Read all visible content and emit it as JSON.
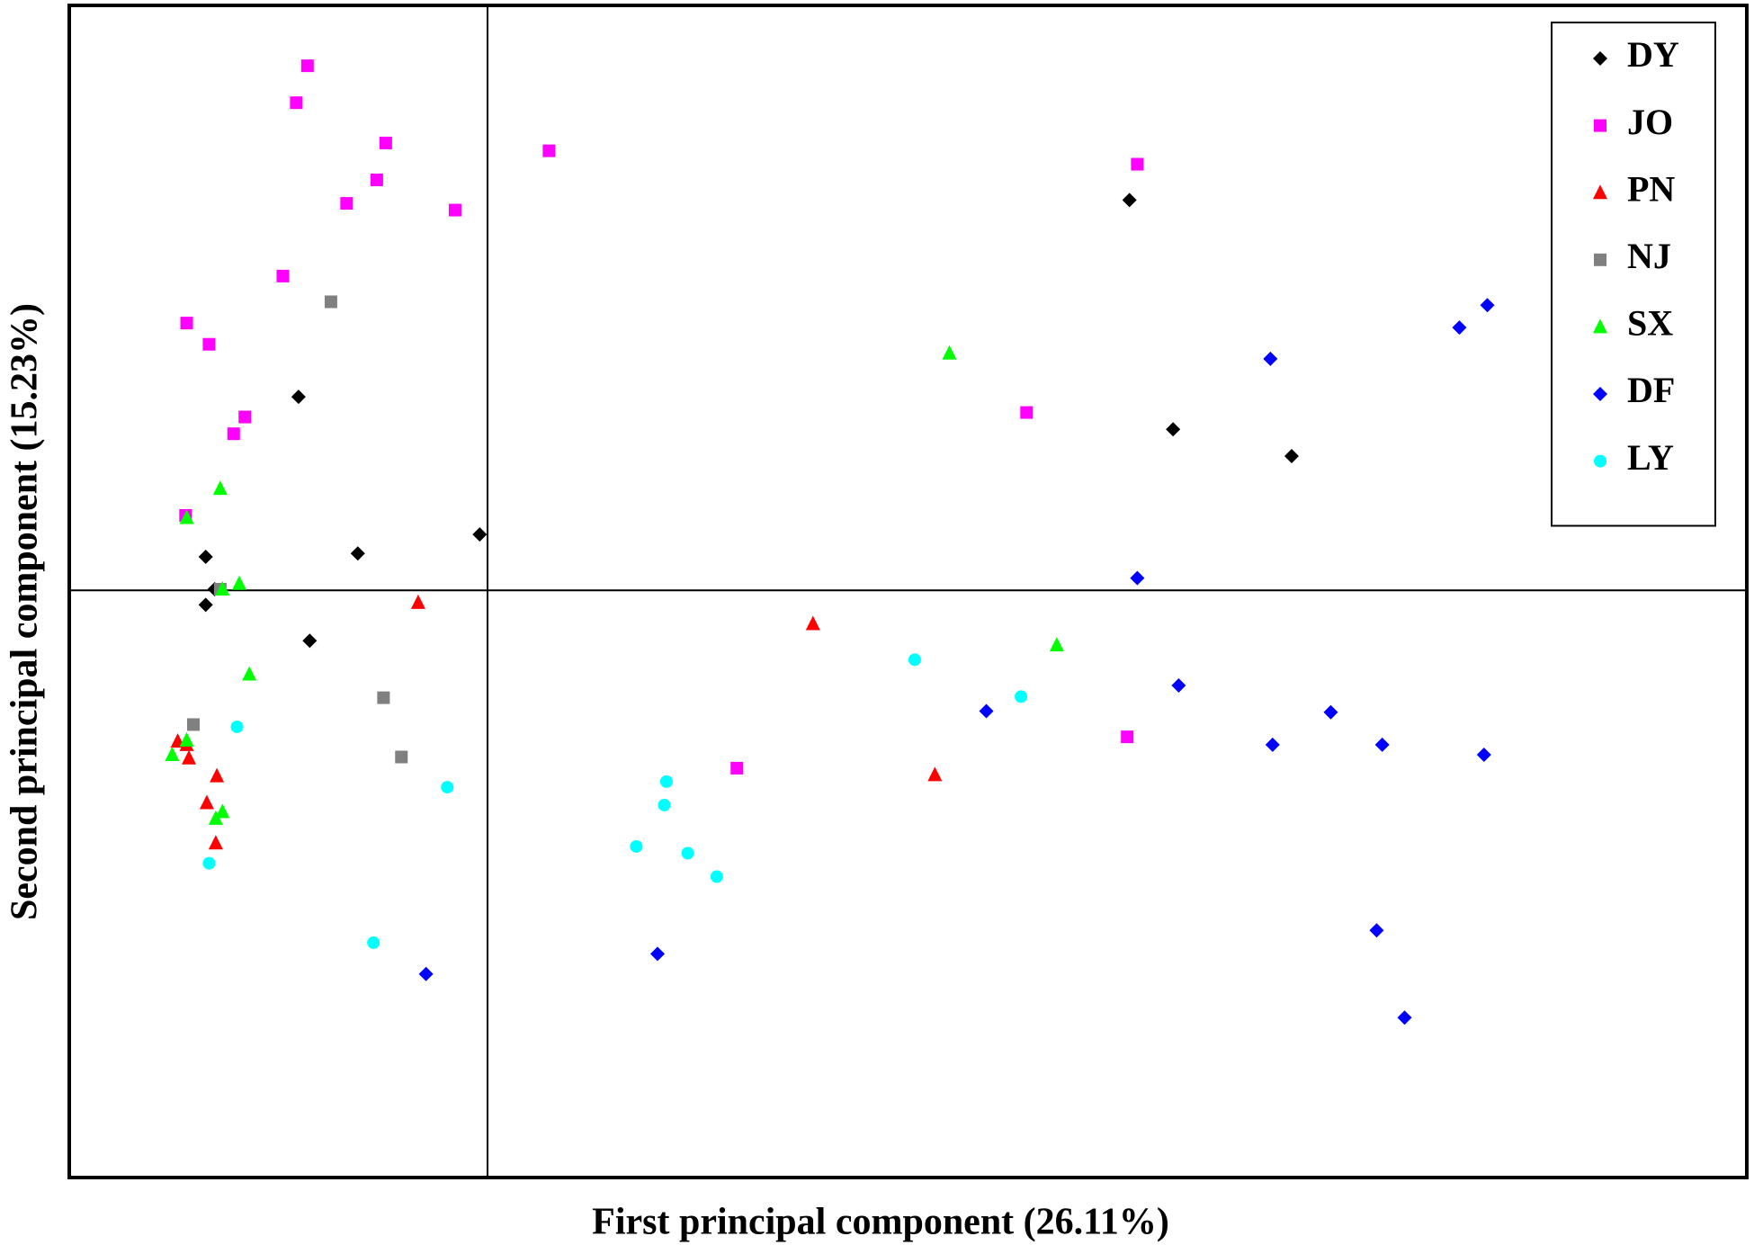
{
  "chart_data": {
    "type": "scatter",
    "x_label": "First principal component (26.11%)",
    "y_label": "Second principal component (15.23%)",
    "xlim": [
      -3.74,
      11.26
    ],
    "ylim": [
      -5.25,
      5.23
    ],
    "xticks": [
      0
    ],
    "yticks": [
      0
    ],
    "legend": "upper right",
    "series": [
      {
        "name": "DY",
        "color": "#000000",
        "marker": "diamond",
        "x": [
          5.74,
          -1.69,
          6.13,
          7.19,
          -0.07,
          -2.52,
          -1.16,
          -2.44,
          -2.52,
          -1.59
        ],
        "values": [
          3.49,
          1.73,
          1.44,
          1.2,
          0.5,
          0.3,
          0.33,
          0.01,
          -0.13,
          -0.45
        ]
      },
      {
        "name": "JO",
        "color": "#ff00ff",
        "marker": "square",
        "x": [
          -1.61,
          -1.71,
          -0.91,
          -0.99,
          -1.26,
          -0.29,
          0.55,
          5.81,
          -1.83,
          -2.69,
          -2.49,
          -2.17,
          -2.27,
          -2.7,
          4.82,
          5.72,
          2.23
        ],
        "values": [
          4.69,
          4.36,
          4.0,
          3.67,
          3.46,
          3.4,
          3.93,
          3.81,
          2.81,
          2.39,
          2.2,
          1.55,
          1.4,
          0.67,
          1.59,
          -1.31,
          -1.59
        ]
      },
      {
        "name": "PN",
        "color": "#ff0000",
        "marker": "triangle",
        "x": [
          -0.62,
          2.91,
          4.0,
          -2.77,
          -2.69,
          -2.67,
          -2.42,
          -2.51,
          -2.43
        ],
        "values": [
          -0.11,
          -0.3,
          -1.65,
          -1.35,
          -1.38,
          -1.5,
          -1.66,
          -1.9,
          -2.26
        ]
      },
      {
        "name": "NJ",
        "color": "#808080",
        "marker": "square",
        "x": [
          -1.4,
          -2.39,
          -2.63,
          -0.93,
          -0.77
        ],
        "values": [
          2.58,
          0.01,
          -1.2,
          -0.96,
          -1.49
        ]
      },
      {
        "name": "SX",
        "color": "#00ff00",
        "marker": "triangle",
        "x": [
          4.13,
          -2.39,
          -2.69,
          -2.22,
          -2.37,
          -2.13,
          5.09,
          -2.69,
          -2.82,
          -2.37,
          -2.43
        ],
        "values": [
          2.12,
          0.91,
          0.65,
          0.06,
          0.01,
          -0.75,
          -0.49,
          -1.34,
          -1.47,
          -1.98,
          -2.04
        ]
      },
      {
        "name": "DF",
        "color": "#0000ff",
        "marker": "diamond",
        "x": [
          8.94,
          8.69,
          7.0,
          5.81,
          4.46,
          6.18,
          7.54,
          7.02,
          8.0,
          8.91,
          1.52,
          -0.55,
          7.95,
          8.2
        ],
        "values": [
          2.55,
          2.35,
          2.07,
          0.11,
          -1.08,
          -0.85,
          -1.09,
          -1.38,
          -1.38,
          -1.47,
          -3.25,
          -3.43,
          -3.04,
          -3.82
        ]
      },
      {
        "name": "LY",
        "color": "#00ffff",
        "marker": "circle",
        "x": [
          3.82,
          4.77,
          -2.24,
          -0.36,
          1.6,
          1.58,
          1.33,
          1.79,
          2.05,
          -2.49,
          -1.02
        ],
        "values": [
          -0.62,
          -0.95,
          -1.22,
          -1.76,
          -1.71,
          -1.92,
          -2.29,
          -2.35,
          -2.56,
          -2.44,
          -3.15
        ]
      }
    ]
  }
}
